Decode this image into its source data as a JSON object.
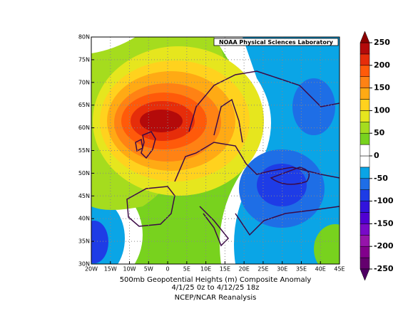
{
  "map": {
    "credit": "NOAA Physical Sciences Laboratory",
    "xlim": [
      -20,
      45
    ],
    "ylim": [
      30,
      80
    ],
    "lon_ticks": [
      {
        "value": -20,
        "label": "20W"
      },
      {
        "value": -15,
        "label": "15W"
      },
      {
        "value": -10,
        "label": "10W"
      },
      {
        "value": -5,
        "label": "5W"
      },
      0,
      {
        "value": 5,
        "label": "5E"
      },
      {
        "value": 10,
        "label": "10E"
      },
      {
        "value": 15,
        "label": "15E"
      },
      {
        "value": 20,
        "label": "20E"
      },
      {
        "value": 25,
        "label": "25E"
      },
      {
        "value": 30,
        "label": "30E"
      },
      {
        "value": 35,
        "label": "35E"
      },
      {
        "value": 40,
        "label": "40E"
      },
      {
        "value": 45,
        "label": "45E"
      }
    ],
    "lat_ticks": [
      {
        "value": 30,
        "label": "30N"
      },
      {
        "value": 35,
        "label": "35N"
      },
      {
        "value": 40,
        "label": "40N"
      },
      {
        "value": 45,
        "label": "45N"
      },
      {
        "value": 50,
        "label": "50N"
      },
      {
        "value": 55,
        "label": "55N"
      },
      {
        "value": 60,
        "label": "60N"
      },
      {
        "value": 65,
        "label": "65N"
      },
      {
        "value": 70,
        "label": "70N"
      },
      {
        "value": 75,
        "label": "75N"
      },
      {
        "value": 80,
        "label": "80N"
      }
    ],
    "grid": true
  },
  "colorbar": {
    "lim": [
      -250,
      250
    ],
    "ticks": [
      250,
      200,
      150,
      100,
      50,
      0,
      -50,
      -100,
      -150,
      -200,
      -250
    ],
    "colors": [
      "#64006e",
      "#82008c",
      "#9614aa",
      "#780ac8",
      "#5000d2",
      "#3214dc",
      "#1e3ce6",
      "#1e6ee6",
      "#0aa5e6",
      "#ffffff",
      "#ffffff",
      "#78d21e",
      "#a5dc1e",
      "#e6e61e",
      "#ffd21e",
      "#ffaa14",
      "#ff8214",
      "#ff5a0a",
      "#e62d0a",
      "#b40a0a"
    ],
    "under_color": "#500064",
    "over_color": "#8c0000"
  },
  "caption": {
    "line1": "500mb Geopotential Heights (m)   Composite Anomaly",
    "line2": "4/1/25 0z  to 4/12/25 18z",
    "line3": "NCEP/NCAR Reanalysis"
  }
}
